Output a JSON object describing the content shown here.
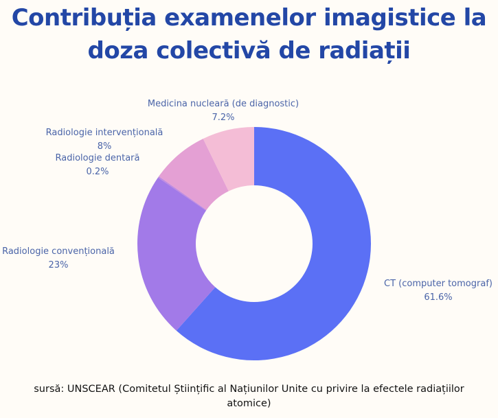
{
  "chart_data": {
    "type": "pie",
    "donut": true,
    "title": "Contribuția examenelor imagistice la doza colectivă de radiații",
    "slices": [
      {
        "label": "CT (computer tomograf)",
        "value": 61.6,
        "value_label": "61.6%",
        "color": "#5b70f5"
      },
      {
        "label": "Radiologie convențională",
        "value": 23,
        "value_label": "23%",
        "color": "#a27ae8"
      },
      {
        "label": "Radiologie dentară",
        "value": 0.2,
        "value_label": "0.2%",
        "color": "#c08ae0"
      },
      {
        "label": "Radiologie intervențională",
        "value": 8,
        "value_label": "8%",
        "color": "#e4a0d4"
      },
      {
        "label": "Medicina nucleară (de diagnostic)",
        "value": 7.2,
        "value_label": "7.2%",
        "color": "#f4bdd6"
      }
    ],
    "start": "top",
    "direction": "clockwise",
    "source": "sursă: UNSCEAR (Comitetul Științific al Națiunilor Unite cu privire la efectele radiațiilor atomice)"
  },
  "colors": {
    "title": "#2347a6",
    "labels": "#4a64a8",
    "background": "#fffcf7"
  }
}
